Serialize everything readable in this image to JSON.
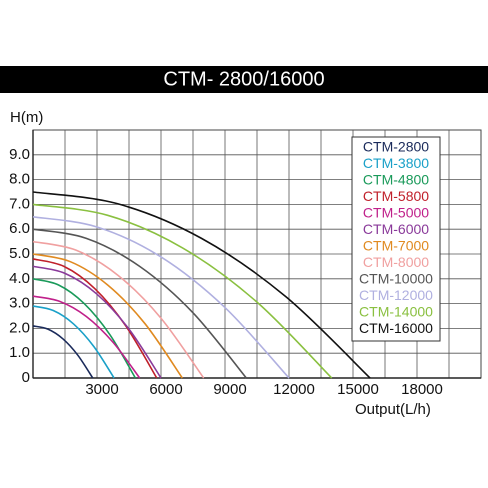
{
  "chart_data": {
    "type": "line",
    "title": "CTM- 2800/16000",
    "y_label": "H(m)",
    "x_label": "Output(L/h)",
    "xlim": [
      0,
      21000
    ],
    "ylim": [
      0,
      10
    ],
    "xticks": [
      3000,
      6000,
      9000,
      12000,
      15000,
      18000
    ],
    "x_minor_grid": [
      1500,
      4500,
      7500,
      10500,
      13500,
      16500,
      19500
    ],
    "yticks": [
      0,
      {
        "value": 1,
        "label": "1.0"
      },
      {
        "value": 2,
        "label": "2.0"
      },
      {
        "value": 3,
        "label": "3.0"
      },
      {
        "value": 4,
        "label": "4.0"
      },
      {
        "value": 5,
        "label": "5.0"
      },
      {
        "value": 6,
        "label": "6.0"
      },
      {
        "value": 7,
        "label": "7.0"
      },
      {
        "value": 8,
        "label": "8.0"
      },
      {
        "value": 9,
        "label": "9.0"
      }
    ],
    "grid": true,
    "legend": "upper right",
    "series": [
      {
        "name": "CTM-2800",
        "color": "#1a2a5a",
        "x": [
          0,
          700,
          1400,
          2100,
          2800
        ],
        "values": [
          2.1,
          1.97,
          1.58,
          0.92,
          0
        ]
      },
      {
        "name": "CTM-3800",
        "color": "#1aa0c8",
        "x": [
          0,
          950,
          1900,
          2850,
          3800
        ],
        "values": [
          2.9,
          2.72,
          2.18,
          1.27,
          0
        ]
      },
      {
        "name": "CTM-4800",
        "color": "#1a9a5a",
        "x": [
          0,
          1200,
          2400,
          3600,
          4800
        ],
        "values": [
          4,
          3.75,
          3,
          1.75,
          0
        ]
      },
      {
        "name": "CTM-5800",
        "color": "#c0202a",
        "x": [
          0,
          1450,
          2900,
          4350,
          5800
        ],
        "values": [
          4.8,
          4.5,
          3.6,
          2.1,
          0
        ]
      },
      {
        "name": "CTM-5000",
        "color": "#c0208a",
        "x": [
          0,
          1250,
          2500,
          3750,
          5000
        ],
        "values": [
          3.3,
          3.09,
          2.48,
          1.44,
          0
        ]
      },
      {
        "name": "CTM-6000",
        "color": "#8a3a9a",
        "x": [
          0,
          1500,
          3000,
          4500,
          6000
        ],
        "values": [
          4.5,
          4.22,
          3.38,
          1.97,
          0
        ]
      },
      {
        "name": "CTM-7000",
        "color": "#e08a20",
        "x": [
          0,
          1750,
          3500,
          5250,
          7000
        ],
        "values": [
          5,
          4.69,
          3.75,
          2.19,
          0
        ]
      },
      {
        "name": "CTM-8000",
        "color": "#f0a0a0",
        "x": [
          0,
          2000,
          4000,
          6000,
          8000
        ],
        "values": [
          5.5,
          5.16,
          4.13,
          2.41,
          0
        ]
      },
      {
        "name": "CTM-10000",
        "color": "#555555",
        "x": [
          0,
          2500,
          5000,
          7500,
          10000
        ],
        "values": [
          6,
          5.63,
          4.5,
          2.63,
          0
        ]
      },
      {
        "name": "CTM-12000",
        "color": "#b0b0e0",
        "x": [
          0,
          3000,
          6000,
          9000,
          12000
        ],
        "values": [
          6.5,
          6.09,
          4.88,
          2.84,
          0
        ]
      },
      {
        "name": "CTM-14000",
        "color": "#8ac040",
        "x": [
          0,
          3500,
          7000,
          10500,
          14000
        ],
        "values": [
          7,
          6.56,
          5.25,
          3.06,
          0
        ]
      },
      {
        "name": "CTM-16000",
        "color": "#111111",
        "x": [
          0,
          3950,
          7900,
          11850,
          15800
        ],
        "values": [
          7.5,
          7.03,
          5.63,
          3.28,
          0
        ]
      }
    ]
  }
}
